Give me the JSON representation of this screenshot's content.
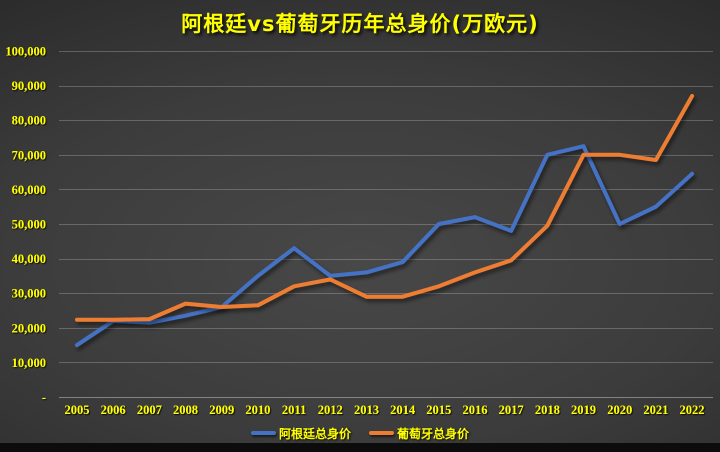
{
  "title": "阿根廷vs葡萄牙历年总身价(万欧元)",
  "colors": {
    "title_text": "#FFFF00",
    "axis_label_text": "#FFFF00",
    "gridline": "#D9D9D9",
    "background_center": "#484848",
    "background_edge": "#1e1e1e",
    "argentina_line": "#4472C4",
    "portugal_line": "#ED7D31"
  },
  "legend": {
    "items": [
      {
        "label": "阿根廷总身价",
        "color": "#4472C4"
      },
      {
        "label": "葡萄牙总身价",
        "color": "#ED7D31"
      }
    ],
    "position": "bottom-center"
  },
  "y_axis": {
    "tick_labels": [
      "-",
      "10,000",
      "20,000",
      "30,000",
      "40,000",
      "50,000",
      "60,000",
      "70,000",
      "80,000",
      "90,000",
      "100,000"
    ],
    "zero_label": "-"
  },
  "chart_data": {
    "type": "line",
    "title": "阿根廷vs葡萄牙历年总身价(万欧元)",
    "x": [
      2005,
      2006,
      2007,
      2008,
      2009,
      2010,
      2011,
      2012,
      2013,
      2014,
      2015,
      2016,
      2017,
      2018,
      2019,
      2020,
      2021,
      2022
    ],
    "series": [
      {
        "name": "阿根廷总身价",
        "color": "#4472C4",
        "values": [
          15000,
          22000,
          21500,
          23500,
          26000,
          35000,
          43000,
          35000,
          36000,
          39000,
          50000,
          52000,
          48000,
          70000,
          72500,
          50000,
          55000,
          64500
        ]
      },
      {
        "name": "葡萄牙总身价",
        "color": "#ED7D31",
        "values": [
          22300,
          22300,
          22500,
          27000,
          26000,
          26500,
          32000,
          34000,
          29000,
          29000,
          32000,
          36000,
          39500,
          49500,
          70000,
          70000,
          68500,
          87000
        ]
      }
    ],
    "xlabel": "",
    "ylabel": "",
    "ylim": [
      0,
      100000
    ],
    "ytick_step": 10000,
    "grid": true,
    "legend_position": "bottom"
  }
}
